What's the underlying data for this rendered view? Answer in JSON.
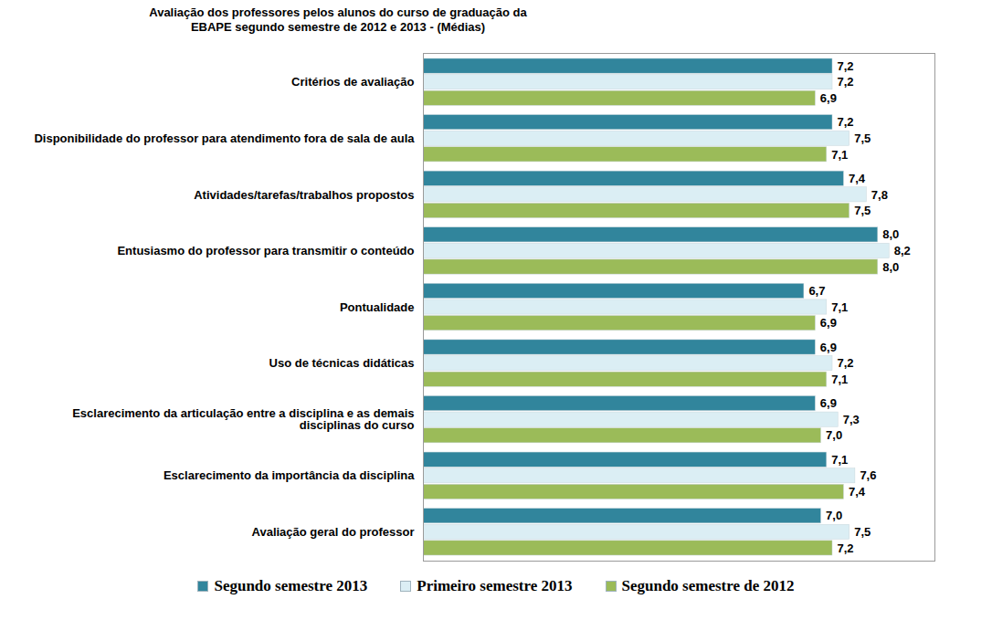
{
  "chart_data": {
    "type": "bar",
    "orientation": "horizontal",
    "title": "Avaliação dos professores pelos alunos do curso de graduação da EBAPE segundo semestre de 2012 e 2013 - (Médias)",
    "categories": [
      "Critérios de avaliação",
      "Disponibilidade do professor para atendimento fora de sala de aula",
      "Atividades/tarefas/trabalhos propostos",
      "Entusiasmo do professor para transmitir o conteúdo",
      "Pontualidade",
      "Uso de técnicas didáticas",
      "Esclarecimento da articulação entre a disciplina e as demais disciplinas do curso",
      "Esclarecimento da importância da disciplina",
      "Avaliação geral do professor"
    ],
    "series": [
      {
        "name": "Segundo semestre 2013",
        "color": "#31859c",
        "values": [
          7.2,
          7.2,
          7.4,
          8.0,
          6.7,
          6.9,
          6.9,
          7.1,
          7.0
        ],
        "value_labels": [
          "7,2",
          "7,2",
          "7,4",
          "8,0",
          "6,7",
          "6,9",
          "6,9",
          "7,1",
          "7,0"
        ]
      },
      {
        "name": "Primeiro semestre 2013",
        "color": "#dbeef4",
        "values": [
          7.2,
          7.5,
          7.8,
          8.2,
          7.1,
          7.2,
          7.3,
          7.6,
          7.5
        ],
        "value_labels": [
          "7,2",
          "7,5",
          "7,8",
          "8,2",
          "7,1",
          "7,2",
          "7,3",
          "7,6",
          "7,5"
        ]
      },
      {
        "name": "Segundo semestre de 2012",
        "color": "#9bbb59",
        "values": [
          6.9,
          7.1,
          7.5,
          8.0,
          6.9,
          7.1,
          7.0,
          7.4,
          7.2
        ],
        "value_labels": [
          "6,9",
          "7,1",
          "7,5",
          "8,0",
          "6,9",
          "7,1",
          "7,0",
          "7,4",
          "7,2"
        ]
      }
    ],
    "xlim": [
      0,
      9
    ],
    "xticks": [],
    "grid": false,
    "data_labels": true,
    "tick_labels": "y",
    "legend": "bottom"
  }
}
